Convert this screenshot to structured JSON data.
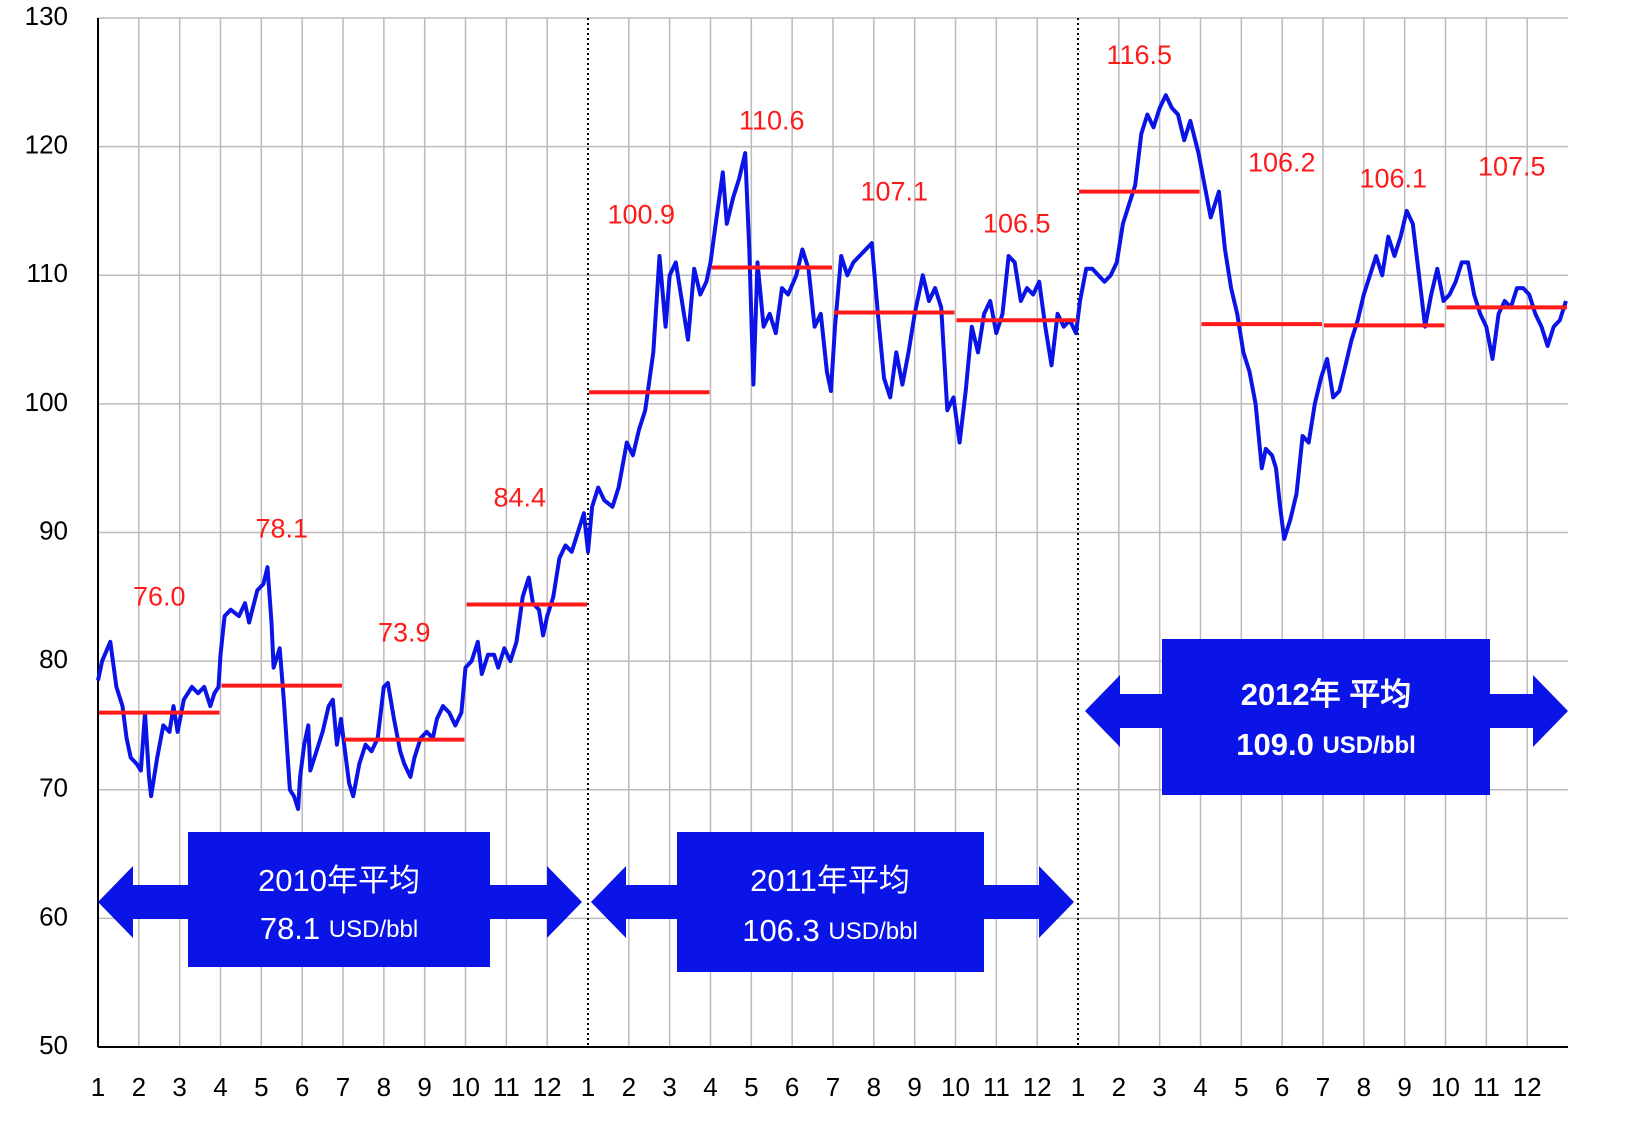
{
  "chart_data": {
    "type": "line",
    "series": [
      {
        "color": "#0a14e6",
        "x": [
          0,
          0.1,
          0.3,
          0.45,
          0.6,
          0.7,
          0.8,
          0.95,
          1.05,
          1.15,
          1.25,
          1.3,
          1.45,
          1.6,
          1.75,
          1.85,
          1.95,
          2.1,
          2.3,
          2.45,
          2.6,
          2.75,
          2.85,
          2.95,
          3.0,
          3.1,
          3.25,
          3.45,
          3.6,
          3.7,
          3.9,
          4.05,
          4.15,
          4.25,
          4.3,
          4.45,
          4.55,
          4.7,
          4.8,
          4.9,
          4.95,
          5.05,
          5.15,
          5.2,
          5.35,
          5.5,
          5.65,
          5.75,
          5.85,
          5.95,
          6.05,
          6.15,
          6.25,
          6.4,
          6.55,
          6.7,
          6.85,
          7.0,
          7.1,
          7.25,
          7.4,
          7.5,
          7.65,
          7.75,
          7.9,
          8.05,
          8.2,
          8.3,
          8.45,
          8.6,
          8.75,
          8.9,
          9.0,
          9.15,
          9.3,
          9.4,
          9.55,
          9.7,
          9.8,
          9.95,
          10.1,
          10.25,
          10.4,
          10.55,
          10.65,
          10.8,
          10.9,
          11.0,
          11.15,
          11.3,
          11.45,
          11.6,
          11.75,
          11.9,
          12.0,
          12.1,
          12.25,
          12.4,
          12.6,
          12.75,
          12.95,
          13.1,
          13.25,
          13.4,
          13.6,
          13.75,
          13.9,
          14.0,
          14.15,
          14.3,
          14.45,
          14.6,
          14.75,
          14.9,
          15.0,
          15.15,
          15.3,
          15.4,
          15.55,
          15.7,
          15.85,
          15.95,
          16.05,
          16.15,
          16.3,
          16.45,
          16.6,
          16.75,
          16.9,
          17.1,
          17.25,
          17.4,
          17.55,
          17.7,
          17.85,
          17.95,
          18.05,
          18.2,
          18.35,
          18.5,
          18.65,
          18.8,
          18.95,
          19.1,
          19.25,
          19.4,
          19.55,
          19.7,
          19.85,
          20.0,
          20.2,
          20.35,
          20.5,
          20.65,
          20.8,
          20.95,
          21.1,
          21.25,
          21.4,
          21.55,
          21.7,
          21.85,
          22.0,
          22.15,
          22.3,
          22.45,
          22.6,
          22.75,
          22.9,
          23.05,
          23.2,
          23.35,
          23.5,
          23.65,
          23.8,
          23.95,
          24.05,
          24.2,
          24.35,
          24.5,
          24.65,
          24.8,
          24.95,
          25.1,
          25.25,
          25.4,
          25.55,
          25.7,
          25.85,
          26.0,
          26.15,
          26.3,
          26.45,
          26.6,
          26.75,
          26.95,
          27.1,
          27.25,
          27.45,
          27.6,
          27.75,
          27.9,
          28.05,
          28.2,
          28.35,
          28.5,
          28.6,
          28.75,
          28.85,
          28.95,
          29.05,
          29.2,
          29.35,
          29.5,
          29.65,
          29.8,
          29.95,
          30.1,
          30.25,
          30.4,
          30.55,
          30.7,
          30.85,
          31.0,
          31.15,
          31.3,
          31.45,
          31.6,
          31.75,
          31.9,
          32.05,
          32.2,
          32.35,
          32.5,
          32.65,
          32.8,
          32.95,
          33.1,
          33.25,
          33.4,
          33.55,
          33.7,
          33.85,
          34.0,
          34.15,
          34.3,
          34.45,
          34.6,
          34.75,
          34.9,
          35.05,
          35.2,
          35.35,
          35.5,
          35.65,
          35.8,
          35.95
        ],
        "values": [
          78.5,
          80,
          81.5,
          78,
          76.5,
          74,
          72.5,
          72,
          71.5,
          76,
          71,
          69.5,
          72.5,
          75,
          74.5,
          76.5,
          74.5,
          77,
          78,
          77.5,
          78,
          76.5,
          77.5,
          78,
          80.5,
          83.5,
          84,
          83.5,
          84.5,
          83,
          85.5,
          86,
          87.3,
          83,
          79.5,
          81,
          77,
          70,
          69.5,
          68.5,
          71,
          73.5,
          75,
          71.5,
          73,
          74.5,
          76.5,
          77,
          73.5,
          75.5,
          73,
          70.5,
          69.5,
          72,
          73.5,
          73,
          74,
          78,
          78.3,
          75.5,
          73,
          72,
          71,
          72.5,
          74,
          74.5,
          74,
          75.5,
          76.5,
          76,
          75,
          76,
          79.5,
          80,
          81.5,
          79,
          80.5,
          80.5,
          79.5,
          81,
          80,
          81.5,
          85,
          86.5,
          84.5,
          84,
          82,
          83.5,
          85,
          88,
          89,
          88.5,
          90,
          91.5,
          88.5,
          92,
          93.5,
          92.5,
          92,
          93.5,
          97,
          96,
          98,
          99.5,
          104,
          111.5,
          106,
          110,
          111,
          108,
          105,
          110.5,
          108.5,
          109.5,
          111,
          114.5,
          118,
          114,
          116,
          117.5,
          119.5,
          112,
          101.5,
          111,
          106,
          107,
          105.5,
          109,
          108.5,
          110,
          112,
          110.5,
          106,
          107,
          102.5,
          101,
          106,
          111.5,
          110,
          111,
          111.5,
          112,
          112.5,
          107,
          102,
          100.5,
          104,
          101.5,
          104,
          107,
          110,
          108,
          109,
          107.5,
          99.5,
          100.5,
          97,
          101,
          106,
          104,
          107,
          108,
          105.5,
          107,
          111.5,
          111,
          108,
          109,
          108.5,
          109.5,
          106,
          103,
          107,
          106,
          106.5,
          105.5,
          108,
          110.5,
          110.5,
          110,
          109.5,
          110,
          111,
          114,
          115.5,
          117,
          121,
          122.5,
          121.5,
          123,
          124,
          123,
          122.5,
          120.5,
          122,
          119.5,
          117,
          114.5,
          116.5,
          112,
          109,
          107,
          104,
          102.5,
          100,
          95,
          96.5,
          96,
          95,
          92,
          89.5,
          91,
          93,
          97.5,
          97,
          100,
          102,
          103.5,
          100.5,
          101,
          103,
          105,
          106.5,
          108.5,
          110,
          111.5,
          110,
          113,
          111.5,
          113,
          115,
          114,
          110,
          106,
          108.5,
          110.5,
          108,
          108.5,
          109.5,
          111,
          111,
          108.5,
          107,
          106,
          103.5,
          107,
          108,
          107.5,
          109,
          109,
          108.5,
          107,
          106,
          104.5,
          106,
          106.5,
          108
        ]
      }
    ],
    "quarter_averages": {
      "color": "#ff1a1a",
      "values": [
        76.0,
        78.1,
        73.9,
        84.4,
        100.9,
        110.6,
        107.1,
        106.5,
        116.5,
        106.2,
        106.1,
        107.5
      ],
      "value_labels": [
        "76.0",
        "78.1",
        "73.9",
        "84.4",
        "100.9",
        "110.6",
        "107.1",
        "106.5",
        "116.5",
        "106.2",
        "106.1",
        "107.5"
      ]
    },
    "annotations": [
      {
        "title": "2010年平均",
        "value": "78.1",
        "unit": "USD/bbl"
      },
      {
        "title": "2011年平均",
        "value": "106.3",
        "unit": "USD/bbl"
      },
      {
        "title": "2012年 平均",
        "value": "109.0",
        "unit": "USD/bbl"
      }
    ],
    "xlim": [
      0,
      36
    ],
    "xticks": [
      {
        "value": 0,
        "label": "1"
      },
      {
        "value": 1,
        "label": "2"
      },
      {
        "value": 2,
        "label": "3"
      },
      {
        "value": 3,
        "label": "4"
      },
      {
        "value": 4,
        "label": "5"
      },
      {
        "value": 5,
        "label": "6"
      },
      {
        "value": 6,
        "label": "7"
      },
      {
        "value": 7,
        "label": "8"
      },
      {
        "value": 8,
        "label": "9"
      },
      {
        "value": 9,
        "label": "10"
      },
      {
        "value": 10,
        "label": "11"
      },
      {
        "value": 11,
        "label": "12"
      },
      {
        "value": 12,
        "label": "1"
      },
      {
        "value": 13,
        "label": "2"
      },
      {
        "value": 14,
        "label": "3"
      },
      {
        "value": 15,
        "label": "4"
      },
      {
        "value": 16,
        "label": "5"
      },
      {
        "value": 17,
        "label": "6"
      },
      {
        "value": 18,
        "label": "7"
      },
      {
        "value": 19,
        "label": "8"
      },
      {
        "value": 20,
        "label": "9"
      },
      {
        "value": 21,
        "label": "10"
      },
      {
        "value": 22,
        "label": "11"
      },
      {
        "value": 23,
        "label": "12"
      },
      {
        "value": 24,
        "label": "1"
      },
      {
        "value": 25,
        "label": "2"
      },
      {
        "value": 26,
        "label": "3"
      },
      {
        "value": 27,
        "label": "4"
      },
      {
        "value": 28,
        "label": "5"
      },
      {
        "value": 29,
        "label": "6"
      },
      {
        "value": 30,
        "label": "7"
      },
      {
        "value": 31,
        "label": "8"
      },
      {
        "value": 32,
        "label": "9"
      },
      {
        "value": 33,
        "label": "10"
      },
      {
        "value": 34,
        "label": "11"
      },
      {
        "value": 35,
        "label": "12"
      }
    ],
    "ylim": [
      50,
      130
    ],
    "yticks": [
      50,
      60,
      70,
      80,
      90,
      100,
      110,
      120,
      130
    ],
    "grid": true
  }
}
